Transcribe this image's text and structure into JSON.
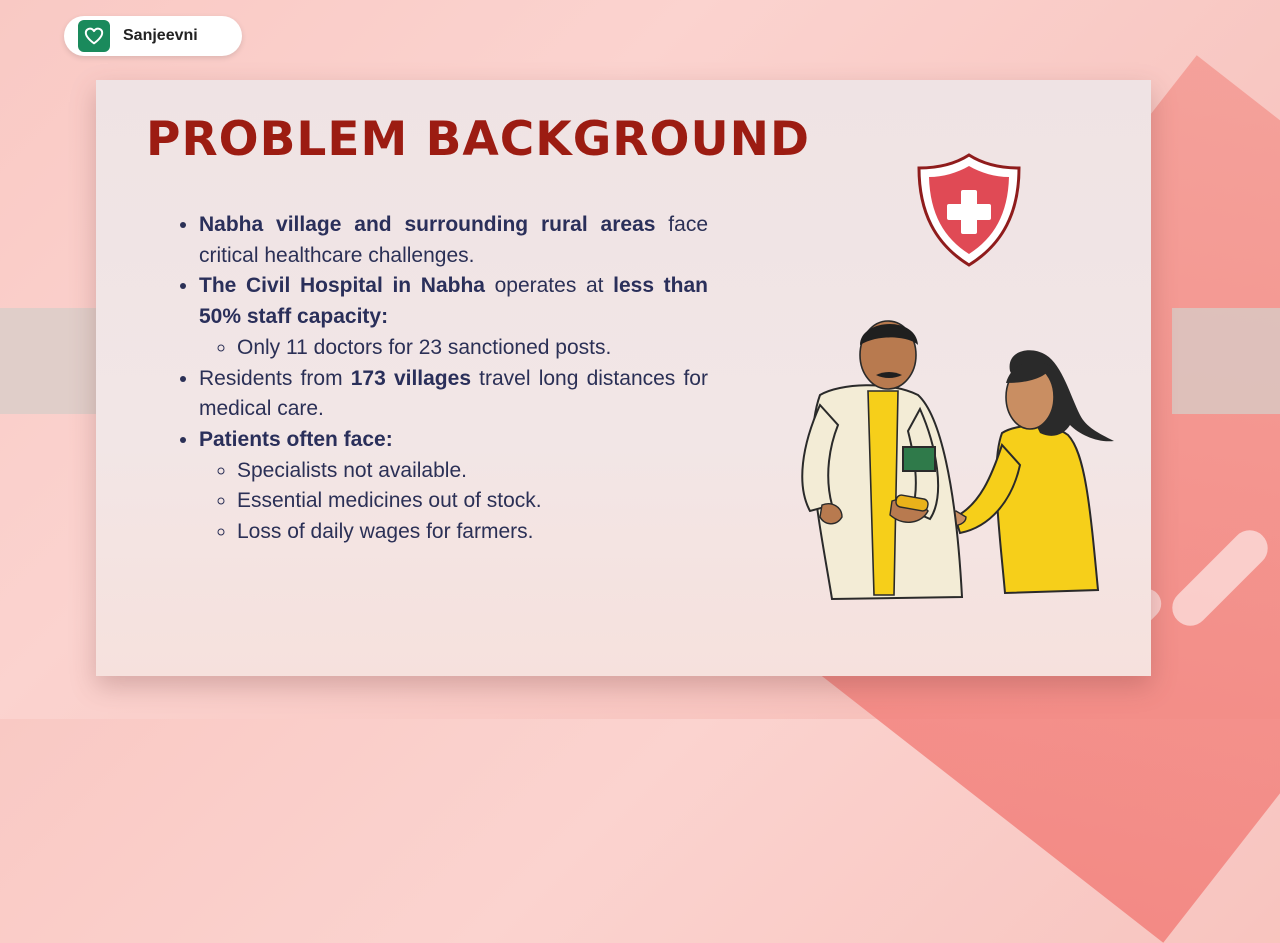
{
  "brand": {
    "name": "Sanjeevni",
    "icon": "heart-icon"
  },
  "slide": {
    "title": "PROBLEM BACKGROUND",
    "bullets": [
      {
        "bold": "Nabha village and surrounding rural areas",
        "rest": " face critical healthcare challenges."
      },
      {
        "bold": "The Civil Hospital in Nabha",
        "mid": " operates at ",
        "bold2": "less than 50% staff capacity:",
        "sub": [
          "Only 11 doctors for 23 sanctioned posts."
        ]
      },
      {
        "pre": "Residents from ",
        "bold": "173 villages",
        "rest": " travel long distances for medical care."
      },
      {
        "bold": "Patients often face:",
        "sub": [
          "Specialists not available.",
          "Essential medicines out of stock.",
          "Loss of daily wages for farmers."
        ]
      }
    ]
  },
  "colors": {
    "title": "#9c1c12",
    "text": "#2b3056",
    "brand_icon": "#1a8a5c",
    "shield": "#e04a55"
  },
  "illustrations": [
    "shield-cross-icon",
    "doctor-and-patient-illustration"
  ]
}
